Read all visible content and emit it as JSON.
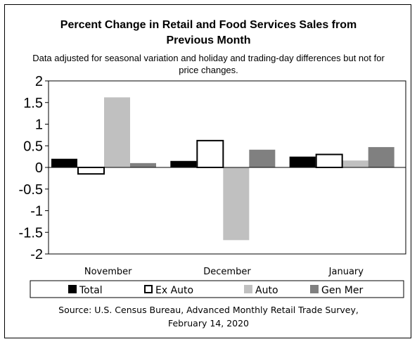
{
  "chart_data": {
    "type": "bar",
    "title_line1": "Percent Change in Retail and Food Services Sales from",
    "title_line2": "Previous Month",
    "subtitle_line1": "Data adjusted for seasonal variation and holiday and trading-day differences but not for",
    "subtitle_line2": "price changes.",
    "categories": [
      "November",
      "December",
      "January"
    ],
    "series": [
      {
        "name": "Total",
        "values": [
          0.2,
          0.15,
          0.25
        ],
        "color": "#000000",
        "outline": false
      },
      {
        "name": "Ex Auto",
        "values": [
          -0.15,
          0.62,
          0.3
        ],
        "color": "#ffffff",
        "outline": true
      },
      {
        "name": "Auto",
        "values": [
          1.62,
          -1.68,
          0.16
        ],
        "color": "#c0c0c0",
        "outline": false
      },
      {
        "name": "Gen Mer",
        "values": [
          0.1,
          0.41,
          0.47
        ],
        "color": "#808080",
        "outline": false
      }
    ],
    "yticks": [
      "2",
      "1.5",
      "1",
      "0.5",
      "0",
      "-0.5",
      "-1",
      "-1.5",
      "-2"
    ],
    "ylim": [
      -2,
      2
    ],
    "grid": false,
    "legend_position": "bottom",
    "source_line1": "Source: U.S. Census Bureau, Advanced Monthly Retail Trade Survey,",
    "source_line2": "February 14, 2020"
  }
}
